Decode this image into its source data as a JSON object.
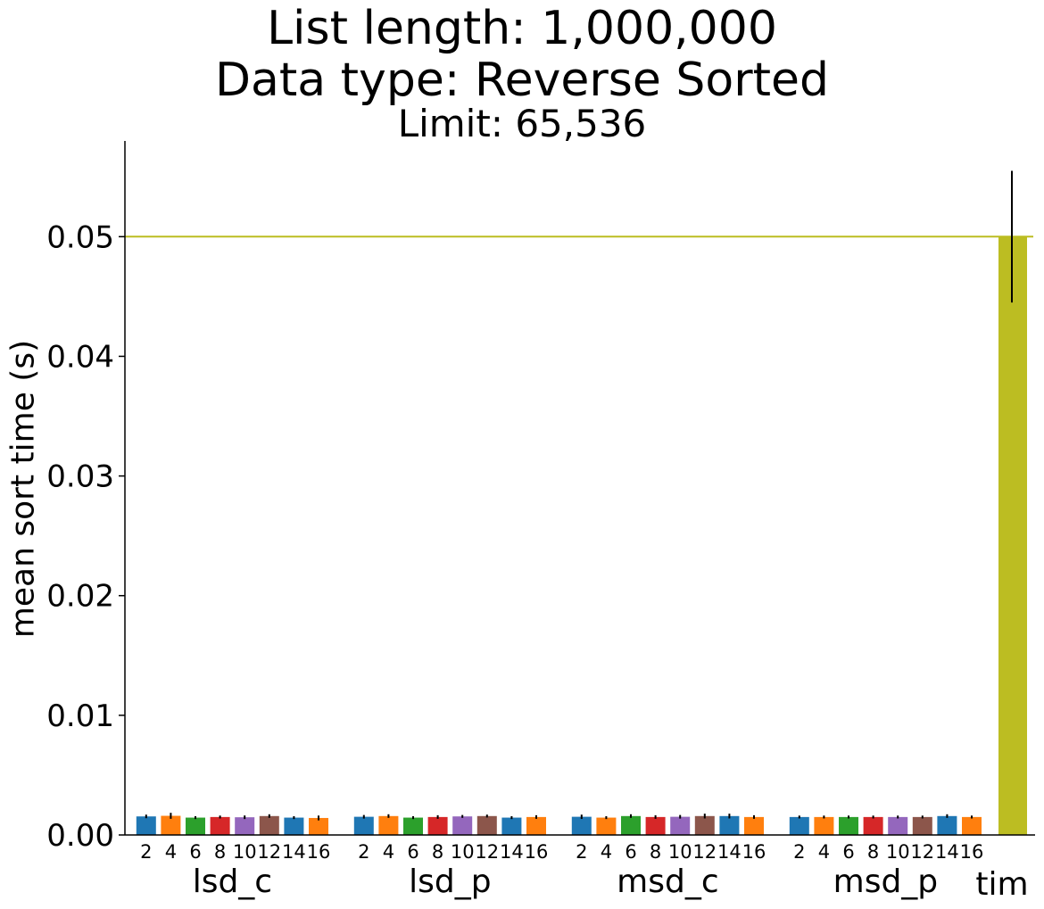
{
  "chart_data": {
    "type": "bar",
    "title": "List length: 1,000,000",
    "subtitle": "Data type: Reverse Sorted",
    "subtitle2": "Limit: 65,536",
    "ylabel": "mean sort time (s)",
    "ylim": [
      0,
      0.058
    ],
    "yticks": [
      "0.00",
      "0.01",
      "0.02",
      "0.03",
      "0.04",
      "0.05"
    ],
    "reference_line": {
      "y": 0.05,
      "color": "#bcbd22"
    },
    "grid": false,
    "colors": [
      "#1f77b4",
      "#ff7f0e",
      "#2ca02c",
      "#d62728",
      "#9467bd",
      "#8c564b",
      "#1f77b4",
      "#ff7f0e"
    ],
    "groups": [
      {
        "name": "lsd_c",
        "categories": [
          "2",
          "4",
          "6",
          "8",
          "10",
          "12",
          "14",
          "16"
        ],
        "values": [
          0.00155,
          0.0016,
          0.00145,
          0.0015,
          0.00148,
          0.00158,
          0.00145,
          0.00142
        ],
        "errors": [
          0.00015,
          0.00025,
          0.00012,
          0.00012,
          0.00015,
          0.00015,
          0.00012,
          0.0002
        ]
      },
      {
        "name": "lsd_p",
        "categories": [
          "2",
          "4",
          "6",
          "8",
          "10",
          "12",
          "14",
          "16"
        ],
        "values": [
          0.00152,
          0.00158,
          0.00145,
          0.0015,
          0.00155,
          0.00158,
          0.00145,
          0.0015
        ],
        "errors": [
          0.00015,
          0.00015,
          0.00012,
          0.00015,
          0.00012,
          0.00012,
          0.00012,
          0.00015
        ]
      },
      {
        "name": "msd_c",
        "categories": [
          "2",
          "4",
          "6",
          "8",
          "10",
          "12",
          "14",
          "16"
        ],
        "values": [
          0.00152,
          0.00145,
          0.00158,
          0.0015,
          0.00152,
          0.00158,
          0.00158,
          0.0015
        ],
        "errors": [
          0.00018,
          0.00012,
          0.00015,
          0.00015,
          0.00015,
          0.0002,
          0.0002,
          0.00015
        ]
      },
      {
        "name": "msd_p",
        "categories": [
          "2",
          "4",
          "6",
          "8",
          "10",
          "12",
          "14",
          "16"
        ],
        "values": [
          0.0015,
          0.0015,
          0.0015,
          0.0015,
          0.0015,
          0.0015,
          0.00158,
          0.0015
        ],
        "errors": [
          0.00012,
          0.00012,
          0.00012,
          0.00012,
          0.00012,
          0.00012,
          0.00015,
          0.00012
        ]
      },
      {
        "name": "tim",
        "categories": [
          ""
        ],
        "values": [
          0.05
        ],
        "errors": [
          0.0055
        ],
        "color": "#bcbd22"
      }
    ]
  }
}
